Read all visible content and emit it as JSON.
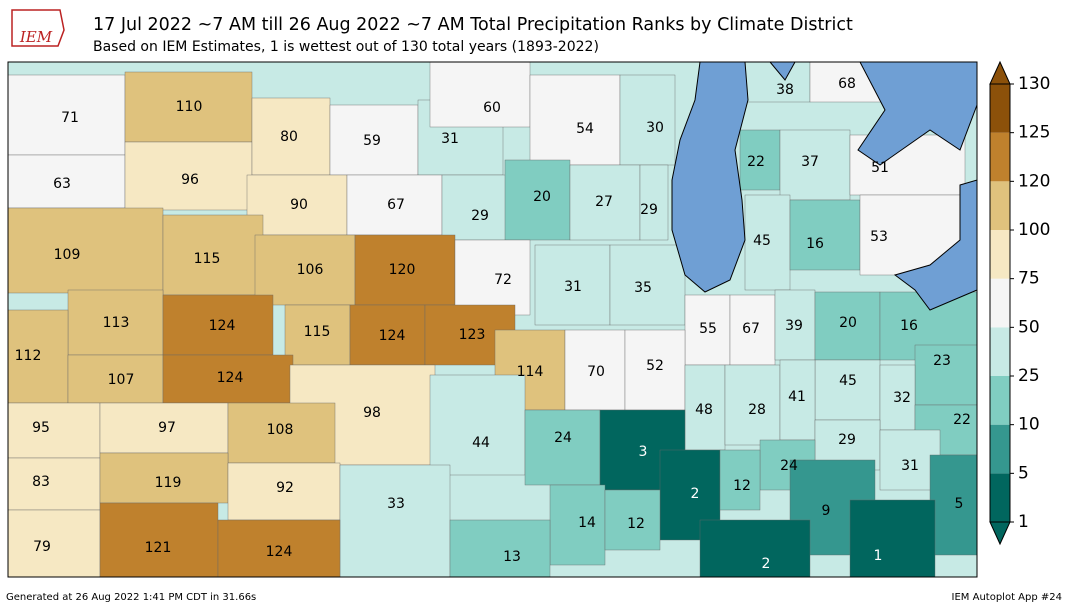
{
  "header": {
    "logo": "IEM",
    "title": "17 Jul 2022 ~7 AM till 26 Aug 2022 ~7 AM Total Precipitation Ranks by Climate District",
    "subtitle": "Based on IEM Estimates, 1 is wettest out of 130 total years (1893-2022)"
  },
  "map": {
    "ranks": [
      71,
      110,
      63,
      96,
      80,
      59,
      31,
      60,
      54,
      30,
      38,
      68,
      22,
      37,
      51,
      90,
      67,
      29,
      20,
      27,
      29,
      45,
      16,
      53,
      109,
      115,
      106,
      120,
      72,
      31,
      35,
      113,
      124,
      115,
      124,
      123,
      55,
      67,
      39,
      20,
      16,
      112,
      107,
      124,
      114,
      70,
      52,
      23,
      45,
      32,
      48,
      28,
      41,
      22,
      98,
      95,
      97,
      108,
      44,
      24,
      3,
      29,
      31,
      24,
      83,
      119,
      92,
      2,
      12,
      9,
      5,
      33,
      14,
      12,
      79,
      121,
      124,
      13,
      2,
      1
    ]
  },
  "colorbar": {
    "levels": [
      1,
      5,
      10,
      25,
      50,
      75,
      100,
      120,
      125,
      130
    ],
    "colors": [
      "#01665e",
      "#35978f",
      "#80cdc1",
      "#c7eae5",
      "#f5f5f5",
      "#f6e8c3",
      "#dfc27d",
      "#bf812d",
      "#8c510a"
    ]
  },
  "footer": {
    "left": "Generated at 26 Aug 2022 1:41 PM CDT in 31.66s",
    "right": "IEM Autoplot App #24"
  }
}
